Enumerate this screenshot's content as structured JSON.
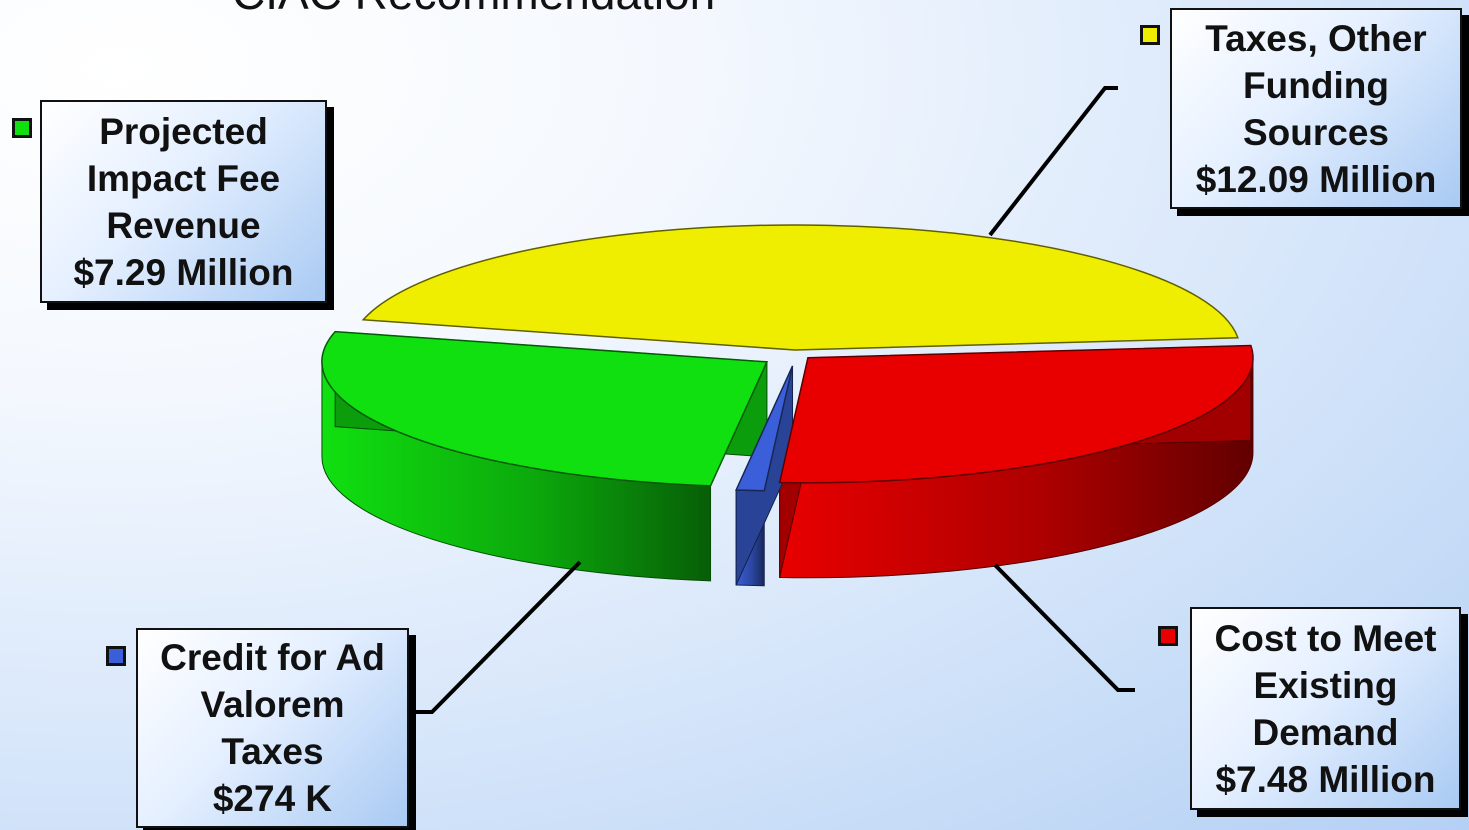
{
  "title": "CIAC Recommendation",
  "colors": {
    "taxes": "#f0ee00",
    "impact": "#10e010",
    "credit": "#3a5fd8",
    "existing": "#e80000"
  },
  "chart_data": {
    "type": "pie",
    "unit": "$ Million",
    "slices": [
      {
        "key": "taxes",
        "lines": [
          "Taxes, Other",
          "Funding",
          "Sources",
          "$12.09 Million"
        ],
        "value": 12.09,
        "color": "#f0ee00"
      },
      {
        "key": "existing",
        "lines": [
          "Cost to Meet",
          "Existing",
          "Demand",
          "$7.48 Million"
        ],
        "value": 7.48,
        "color": "#e80000"
      },
      {
        "key": "credit",
        "lines": [
          "Credit for Ad",
          "Valorem",
          "Taxes",
          "$274 K"
        ],
        "value": 0.274,
        "color": "#3a5fd8"
      },
      {
        "key": "impact",
        "lines": [
          "Projected",
          "Impact Fee",
          "Revenue",
          "$7.29 Million"
        ],
        "value": 7.29,
        "color": "#10e010"
      }
    ]
  }
}
